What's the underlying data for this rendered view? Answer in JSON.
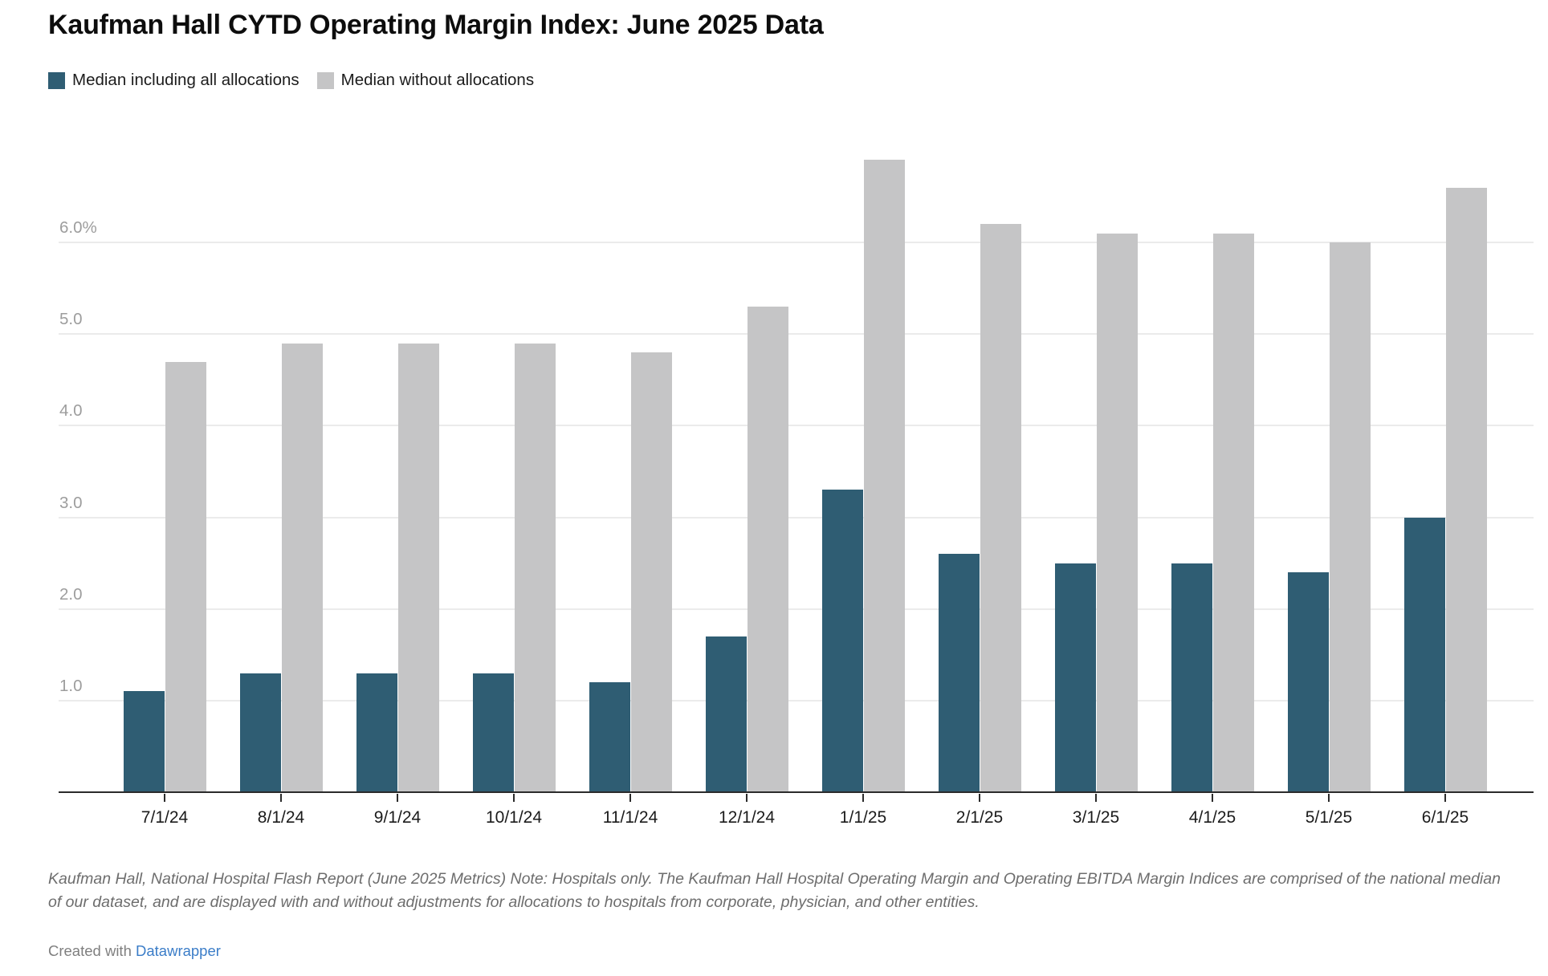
{
  "title": "Kaufman Hall CYTD Operating Margin Index: June 2025 Data",
  "legend": [
    {
      "label": "Median including all allocations",
      "color": "#2f5d73"
    },
    {
      "label": "Median without allocations",
      "color": "#c5c5c6"
    }
  ],
  "chart_data": {
    "type": "bar",
    "title": "Kaufman Hall CYTD Operating Margin Index: June 2025 Data",
    "categories": [
      "7/1/24",
      "8/1/24",
      "9/1/24",
      "10/1/24",
      "11/1/24",
      "12/1/24",
      "1/1/25",
      "2/1/25",
      "3/1/25",
      "4/1/25",
      "5/1/25",
      "6/1/25"
    ],
    "series": [
      {
        "name": "Median including all allocations",
        "color": "#2f5d73",
        "values": [
          1.1,
          1.3,
          1.3,
          1.3,
          1.2,
          1.7,
          3.3,
          2.6,
          2.5,
          2.5,
          2.4,
          3.0
        ]
      },
      {
        "name": "Median without allocations",
        "color": "#c5c5c6",
        "values": [
          4.7,
          4.9,
          4.9,
          4.9,
          4.8,
          5.3,
          6.9,
          6.2,
          6.1,
          6.1,
          6.0,
          6.6
        ]
      }
    ],
    "xlabel": "",
    "ylabel": "",
    "unit": "%",
    "ylim": [
      0,
      7.25
    ],
    "y_ticks": [
      {
        "value": 1,
        "label": "1.0"
      },
      {
        "value": 2,
        "label": "2.0"
      },
      {
        "value": 3,
        "label": "3.0"
      },
      {
        "value": 4,
        "label": "4.0"
      },
      {
        "value": 5,
        "label": "5.0"
      },
      {
        "value": 6,
        "label": "6.0%"
      }
    ],
    "grid": true,
    "legend_position": "top-left"
  },
  "footer": {
    "source_note": "Kaufman Hall, National Hospital Flash Report (June 2025 Metrics) Note: Hospitals only. The Kaufman Hall Hospital Operating Margin and Operating EBITDA Margin Indices are comprised of the national median of our dataset, and are displayed with and without adjustments for allocations to hospitals from corporate, physician, and other entities.",
    "attribution_prefix": "Created with ",
    "attribution_link": "Datawrapper"
  }
}
